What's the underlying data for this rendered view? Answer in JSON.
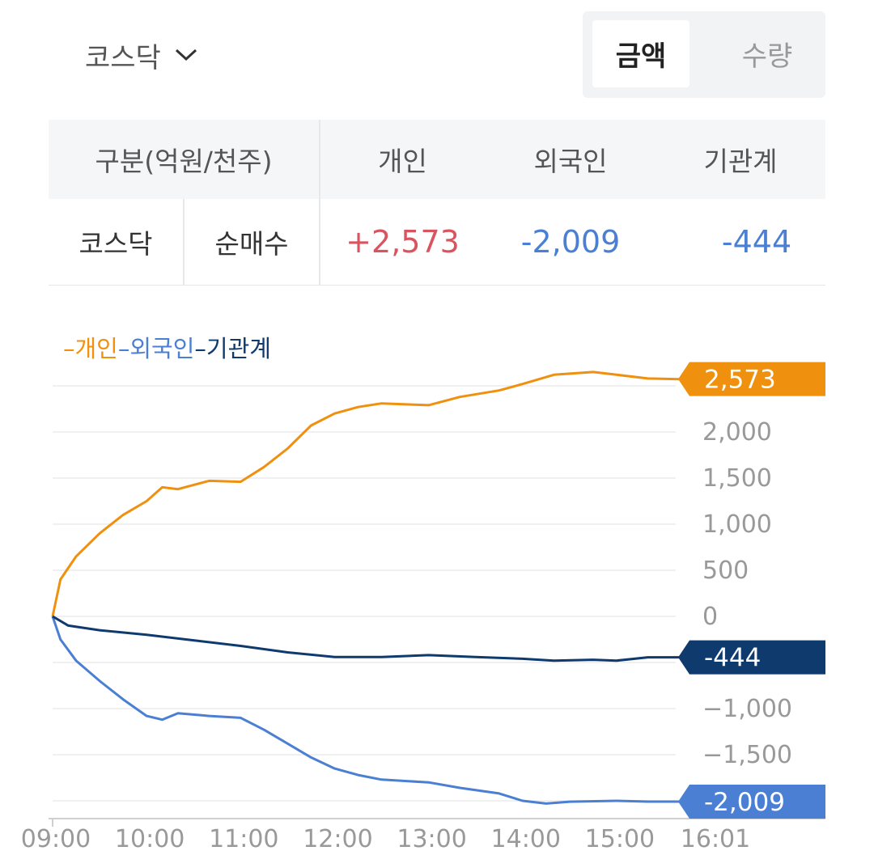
{
  "header": {
    "market_label": "코스닥",
    "toggle": {
      "active": "금액",
      "inactive": "수량"
    }
  },
  "table": {
    "headers": [
      "구분(억원/천주)",
      "개인",
      "외국인",
      "기관계"
    ],
    "row": {
      "market": "코스닥",
      "type": "순매수",
      "values": [
        "+2,573",
        "-2,009",
        "-444"
      ]
    }
  },
  "chart_data": {
    "type": "line",
    "legend": [
      "개인",
      "외국인",
      "기관계"
    ],
    "x_ticks": [
      "09:00",
      "10:00",
      "11:00",
      "12:00",
      "13:00",
      "14:00",
      "15:00",
      "16:01"
    ],
    "y_ticks": [
      2000,
      1500,
      1000,
      500,
      0,
      -1000,
      -1500
    ],
    "ylim": [
      -2500,
      2750
    ],
    "series": [
      {
        "name": "개인",
        "color": "#f0900f",
        "last_label": "2,573",
        "points": [
          [
            "09:00",
            0
          ],
          [
            "09:05",
            400
          ],
          [
            "09:15",
            650
          ],
          [
            "09:30",
            900
          ],
          [
            "09:45",
            1100
          ],
          [
            "10:00",
            1250
          ],
          [
            "10:10",
            1400
          ],
          [
            "10:20",
            1380
          ],
          [
            "10:40",
            1470
          ],
          [
            "11:00",
            1460
          ],
          [
            "11:15",
            1620
          ],
          [
            "11:30",
            1820
          ],
          [
            "11:45",
            2070
          ],
          [
            "12:00",
            2200
          ],
          [
            "12:15",
            2270
          ],
          [
            "12:30",
            2310
          ],
          [
            "13:00",
            2290
          ],
          [
            "13:20",
            2380
          ],
          [
            "13:45",
            2450
          ],
          [
            "14:00",
            2520
          ],
          [
            "14:20",
            2620
          ],
          [
            "14:45",
            2650
          ],
          [
            "15:00",
            2620
          ],
          [
            "15:20",
            2580
          ],
          [
            "15:40",
            2573
          ],
          [
            "16:01",
            2573
          ]
        ]
      },
      {
        "name": "외국인",
        "color": "#4a7fd3",
        "last_label": "-2,009",
        "points": [
          [
            "09:00",
            0
          ],
          [
            "09:05",
            -250
          ],
          [
            "09:15",
            -480
          ],
          [
            "09:30",
            -700
          ],
          [
            "09:45",
            -900
          ],
          [
            "10:00",
            -1080
          ],
          [
            "10:10",
            -1120
          ],
          [
            "10:20",
            -1050
          ],
          [
            "10:40",
            -1080
          ],
          [
            "11:00",
            -1100
          ],
          [
            "11:15",
            -1230
          ],
          [
            "11:30",
            -1380
          ],
          [
            "11:45",
            -1530
          ],
          [
            "12:00",
            -1650
          ],
          [
            "12:15",
            -1720
          ],
          [
            "12:30",
            -1770
          ],
          [
            "13:00",
            -1800
          ],
          [
            "13:20",
            -1860
          ],
          [
            "13:45",
            -1920
          ],
          [
            "14:00",
            -2000
          ],
          [
            "14:15",
            -2030
          ],
          [
            "14:30",
            -2010
          ],
          [
            "15:00",
            -2000
          ],
          [
            "15:20",
            -2009
          ],
          [
            "16:01",
            -2009
          ]
        ]
      },
      {
        "name": "기관계",
        "color": "#0f3a6e",
        "last_label": "-444",
        "points": [
          [
            "09:00",
            0
          ],
          [
            "09:10",
            -100
          ],
          [
            "09:30",
            -150
          ],
          [
            "10:00",
            -200
          ],
          [
            "10:30",
            -260
          ],
          [
            "11:00",
            -320
          ],
          [
            "11:30",
            -390
          ],
          [
            "12:00",
            -440
          ],
          [
            "12:30",
            -440
          ],
          [
            "13:00",
            -420
          ],
          [
            "13:30",
            -440
          ],
          [
            "14:00",
            -460
          ],
          [
            "14:20",
            -480
          ],
          [
            "14:45",
            -470
          ],
          [
            "15:00",
            -480
          ],
          [
            "15:20",
            -444
          ],
          [
            "16:01",
            -444
          ]
        ]
      }
    ]
  }
}
